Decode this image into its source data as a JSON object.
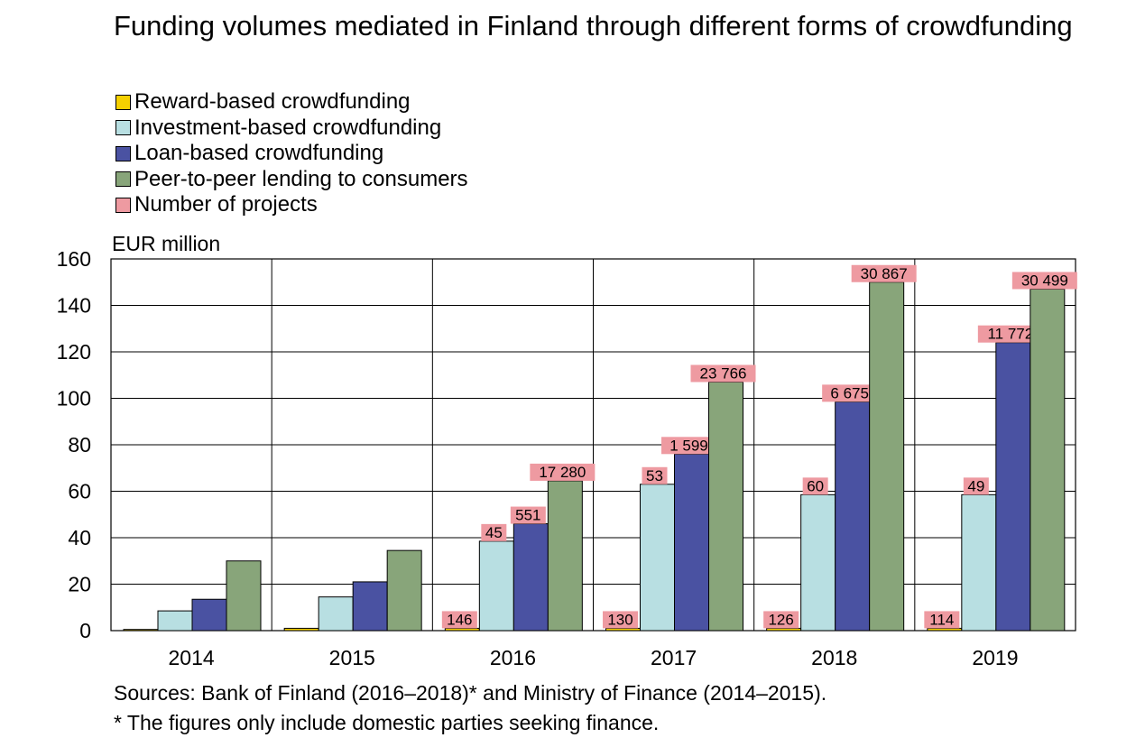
{
  "chart_data": {
    "type": "bar",
    "title": "Funding volumes mediated in Finland through different forms of crowdfunding",
    "ylabel": "EUR million",
    "ylim": [
      0,
      160
    ],
    "yticks": [
      0,
      20,
      40,
      60,
      80,
      100,
      120,
      140,
      160
    ],
    "grid": true,
    "legend_position": "top-left",
    "categories": [
      "2014",
      "2015",
      "2016",
      "2017",
      "2018",
      "2019"
    ],
    "series": [
      {
        "name": "Reward-based crowdfunding",
        "color": "#f5d000",
        "values": [
          0.5,
          1,
          1,
          1,
          1,
          1
        ]
      },
      {
        "name": "Investment-based crowdfunding",
        "color": "#b8dfe2",
        "values": [
          8.5,
          14.5,
          38.5,
          63,
          58.5,
          58.5
        ]
      },
      {
        "name": "Loan-based crowdfunding",
        "color": "#4a52a2",
        "values": [
          13.5,
          21,
          46,
          76,
          98.5,
          124
        ]
      },
      {
        "name": "Peer-to-peer lending to consumers",
        "color": "#88a57a",
        "values": [
          30,
          34.5,
          64.5,
          107,
          150,
          147
        ]
      }
    ],
    "projects_legend": {
      "name": "Number of projects",
      "color": "#ee9aa1"
    },
    "project_labels": [
      [
        null,
        null,
        null,
        null
      ],
      [
        null,
        null,
        null,
        null
      ],
      [
        "146",
        "45",
        "551",
        "17 280"
      ],
      [
        "130",
        "53",
        "1 599",
        "23 766"
      ],
      [
        "126",
        "60",
        "6 675",
        "30 867"
      ],
      [
        "114",
        "49",
        "11 772",
        "30 499"
      ]
    ]
  },
  "footer": {
    "sources": "Sources: Bank of Finland (2016–2018)* and Ministry of Finance (2014–2015).",
    "note": "* The figures only include domestic parties seeking finance."
  }
}
